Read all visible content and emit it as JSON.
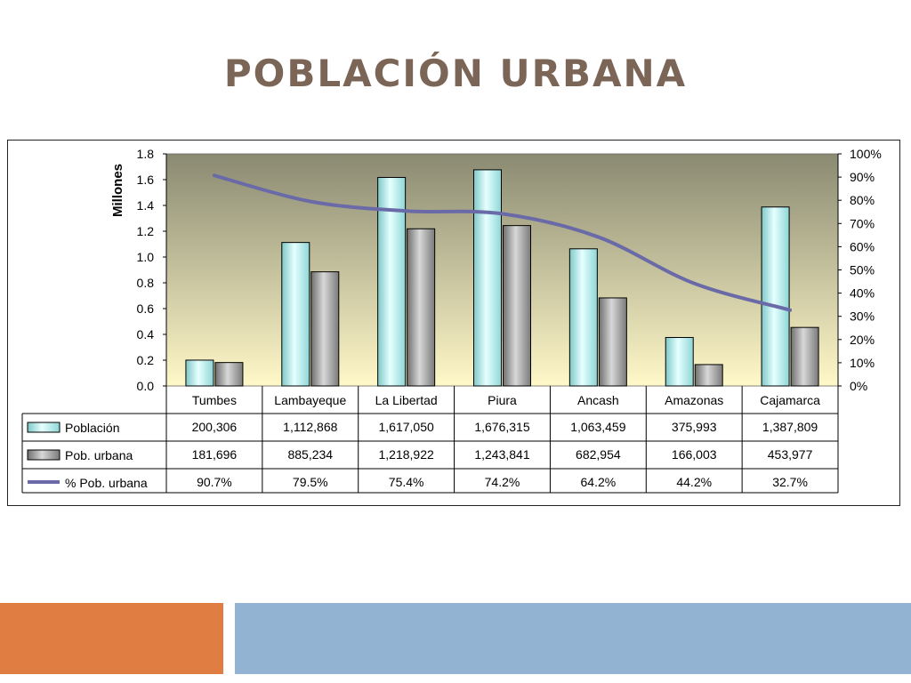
{
  "slide": {
    "title": "POBLACIÓN  URBANA",
    "accent_left": "#e07d43",
    "accent_right": "#93b3d3",
    "title_color": "#7b6557"
  },
  "chart_data": {
    "type": "bar",
    "ylabel": "Millones",
    "ylim": [
      0,
      1.8
    ],
    "y_ticks": [
      "0.0",
      "0.2",
      "0.4",
      "0.6",
      "0.8",
      "1.0",
      "1.2",
      "1.4",
      "1.6",
      "1.8"
    ],
    "y2lim": [
      0,
      100
    ],
    "y2_ticks": [
      "0%",
      "10%",
      "20%",
      "30%",
      "40%",
      "50%",
      "60%",
      "70%",
      "80%",
      "90%",
      "100%"
    ],
    "categories": [
      "Tumbes",
      "Lambayeque",
      "La Libertad",
      "Piura",
      "Ancash",
      "Amazonas",
      "Cajamarca"
    ],
    "series": [
      {
        "name": "Población",
        "kind": "bar",
        "axis": "left",
        "color": "#aeeeee",
        "values": [
          0.200306,
          1.112868,
          1.61705,
          1.676315,
          1.063459,
          0.375993,
          1.387809
        ],
        "table": [
          "200,306",
          "1,112,868",
          "1,617,050",
          "1,676,315",
          "1,063,459",
          "375,993",
          "1,387,809"
        ]
      },
      {
        "name": "Pob. urbana",
        "kind": "bar",
        "axis": "left",
        "color": "#9a9a9a",
        "values": [
          0.181696,
          0.885234,
          1.218922,
          1.243841,
          0.682954,
          0.166003,
          0.453977
        ],
        "table": [
          "181,696",
          "885,234",
          "1,218,922",
          "1,243,841",
          "682,954",
          "166,003",
          "453,977"
        ]
      },
      {
        "name": "% Pob. urbana",
        "kind": "line",
        "axis": "right",
        "color": "#6a6aa8",
        "values": [
          90.7,
          79.5,
          75.4,
          74.2,
          64.2,
          44.2,
          32.7
        ],
        "table": [
          "90.7%",
          "79.5%",
          "75.4%",
          "74.2%",
          "64.2%",
          "44.2%",
          "32.7%"
        ]
      }
    ],
    "background": {
      "top_color": "#8a8a72",
      "bottom_color": "#fff8c8"
    }
  }
}
